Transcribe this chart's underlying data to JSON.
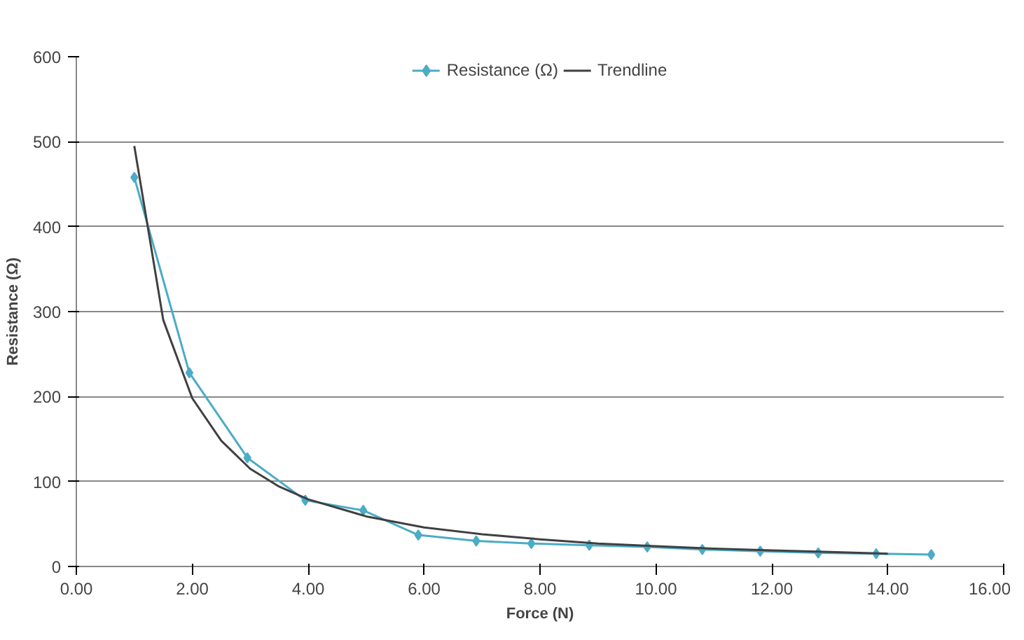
{
  "chart_data": {
    "type": "line",
    "xlabel": "Force (N)",
    "ylabel": "Resistance (Ω)",
    "xlim": [
      0,
      16
    ],
    "xticks": [
      {
        "value": 0,
        "label": "0.00"
      },
      {
        "value": 2,
        "label": "2.00"
      },
      {
        "value": 4,
        "label": "4.00"
      },
      {
        "value": 6,
        "label": "6.00"
      },
      {
        "value": 8,
        "label": "8.00"
      },
      {
        "value": 10,
        "label": "10.00"
      },
      {
        "value": 12,
        "label": "12.00"
      },
      {
        "value": 14,
        "label": "14.00"
      },
      {
        "value": 16,
        "label": "16.00"
      }
    ],
    "ylim": [
      0,
      600
    ],
    "yticks": [
      0,
      100,
      200,
      300,
      400,
      500,
      600
    ],
    "grid": "y",
    "legend": "top",
    "series": [
      {
        "name": "Resistance (Ω)",
        "color": "#4bacc6",
        "marker": "diamond",
        "x": [
          1.0,
          1.95,
          2.95,
          3.95,
          4.95,
          5.9,
          6.9,
          7.85,
          8.85,
          9.85,
          10.8,
          11.8,
          12.8,
          13.8,
          14.75
        ],
        "values": [
          458,
          228,
          128,
          78,
          66,
          37,
          30,
          27,
          25,
          23,
          20,
          18,
          16,
          15,
          14
        ]
      },
      {
        "name": "Trendline",
        "color": "#404040",
        "marker": "none",
        "x": [
          1,
          1.5,
          2,
          2.5,
          3,
          3.5,
          4,
          5,
          6,
          7,
          8,
          9,
          10,
          11,
          12,
          13,
          14
        ],
        "values": [
          495,
          290,
          198,
          148,
          115,
          94,
          79,
          59,
          46,
          38,
          32,
          27,
          24,
          21,
          19,
          17,
          15
        ]
      }
    ]
  }
}
